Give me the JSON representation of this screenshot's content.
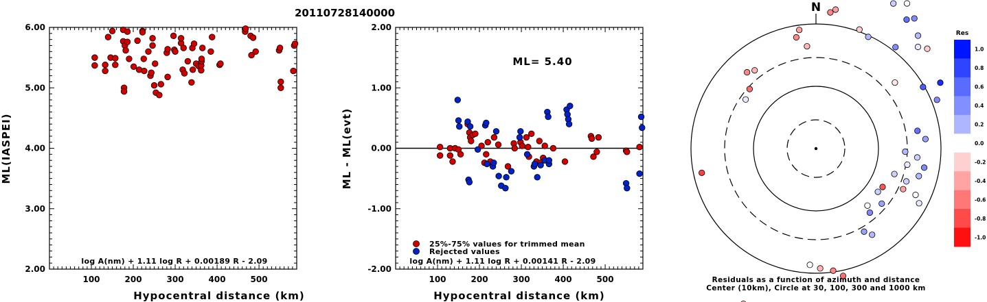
{
  "page_title": "20110728140000",
  "chart_data": [
    {
      "type": "scatter",
      "xlabel": "Hypocentral distance (km)",
      "ylabel": "ML(IASPEI)",
      "xlim": [
        0,
        590
      ],
      "ylim": [
        2.0,
        6.0
      ],
      "x_ticks": [
        "100",
        "200",
        "300",
        "400",
        "500"
      ],
      "y_ticks": [
        "2.00",
        "3.00",
        "4.00",
        "5.00",
        "6.00"
      ],
      "formula": "log A(nm) + 1.11 log R + 0.00189 R - 2.09",
      "color": "#d40000",
      "points": [
        [
          108,
          5.5
        ],
        [
          108,
          5.37
        ],
        [
          133,
          5.28
        ],
        [
          133,
          5.38
        ],
        [
          140,
          5.84
        ],
        [
          146,
          5.5
        ],
        [
          150,
          5.94
        ],
        [
          157,
          5.49
        ],
        [
          157,
          5.38
        ],
        [
          176,
          5.96
        ],
        [
          176,
          5.77
        ],
        [
          178,
          5.0
        ],
        [
          178,
          4.94
        ],
        [
          180,
          5.7
        ],
        [
          182,
          5.62
        ],
        [
          186,
          5.93
        ],
        [
          186,
          5.76
        ],
        [
          190,
          5.48
        ],
        [
          201,
          5.35
        ],
        [
          210,
          5.78
        ],
        [
          214,
          5.3
        ],
        [
          222,
          5.94
        ],
        [
          222,
          5.92
        ],
        [
          225,
          5.48
        ],
        [
          226,
          5.28
        ],
        [
          236,
          5.6
        ],
        [
          241,
          5.2
        ],
        [
          243,
          5.25
        ],
        [
          246,
          5.7
        ],
        [
          246,
          5.82
        ],
        [
          250,
          5.04
        ],
        [
          252,
          5.4
        ],
        [
          254,
          4.92
        ],
        [
          262,
          4.88
        ],
        [
          266,
          5.06
        ],
        [
          280,
          5.58
        ],
        [
          282,
          5.64
        ],
        [
          282,
          5.18
        ],
        [
          296,
          5.86
        ],
        [
          298,
          5.63
        ],
        [
          300,
          5.6
        ],
        [
          314,
          5.74
        ],
        [
          314,
          5.82
        ],
        [
          318,
          5.3
        ],
        [
          320,
          5.66
        ],
        [
          322,
          5.24
        ],
        [
          330,
          5.44
        ],
        [
          339,
          5.09
        ],
        [
          341,
          5.66
        ],
        [
          342,
          5.3
        ],
        [
          345,
          5.73
        ],
        [
          350,
          5.4
        ],
        [
          356,
          5.36
        ],
        [
          362,
          5.29
        ],
        [
          362,
          5.37
        ],
        [
          363,
          5.44
        ],
        [
          363,
          5.48
        ],
        [
          365,
          5.66
        ],
        [
          385,
          5.6
        ],
        [
          388,
          5.84
        ],
        [
          406,
          5.38
        ],
        [
          408,
          5.4
        ],
        [
          467,
          5.93
        ],
        [
          468,
          5.98
        ],
        [
          480,
          5.86
        ],
        [
          482,
          5.54
        ],
        [
          486,
          5.83
        ],
        [
          492,
          5.6
        ],
        [
          548,
          5.62
        ],
        [
          550,
          5.66
        ],
        [
          552,
          5.1
        ],
        [
          552,
          5.0
        ],
        [
          582,
          5.28
        ],
        [
          584,
          5.7
        ],
        [
          586,
          5.73
        ]
      ]
    },
    {
      "type": "scatter",
      "xlabel": "Hypocentral distance (km)",
      "ylabel": "ML - ML(evt)",
      "xlim": [
        0,
        590
      ],
      "ylim": [
        -2.0,
        2.0
      ],
      "x_ticks": [
        "100",
        "200",
        "300",
        "400",
        "500"
      ],
      "y_ticks": [
        "-2.00",
        "-1.00",
        "0.00",
        "1.00",
        "2.00"
      ],
      "annotation": "ML= 5.40",
      "formula": "log A(nm) + 1.11 log R + 0.00141 R - 2.09",
      "series": [
        {
          "name": "25%-75% values for trimmed mean",
          "color": "#d40000",
          "points": [
            [
              106,
              0.02
            ],
            [
              106,
              -0.12
            ],
            [
              130,
              0.0
            ],
            [
              130,
              -0.12
            ],
            [
              136,
              -0.22
            ],
            [
              142,
              0.0
            ],
            [
              150,
              -0.02
            ],
            [
              155,
              -0.1
            ],
            [
              172,
              0.4
            ],
            [
              176,
              0.26
            ],
            [
              178,
              0.18
            ],
            [
              180,
              0.12
            ],
            [
              184,
              0.22
            ],
            [
              190,
              0.24
            ],
            [
              205,
              0.04
            ],
            [
              212,
              -0.24
            ],
            [
              216,
              -0.1
            ],
            [
              220,
              0.1
            ],
            [
              226,
              -0.22
            ],
            [
              235,
              0.18
            ],
            [
              245,
              0.06
            ],
            [
              268,
              -0.3
            ],
            [
              282,
              0.08
            ],
            [
              284,
              0.0
            ],
            [
              298,
              0.1
            ],
            [
              302,
              0.04
            ],
            [
              312,
              0.18
            ],
            [
              316,
              0.02
            ],
            [
              318,
              -0.14
            ],
            [
              324,
              0.24
            ],
            [
              336,
              -0.22
            ],
            [
              343,
              0.12
            ],
            [
              346,
              -0.24
            ],
            [
              352,
              -0.16
            ],
            [
              356,
              0.04
            ],
            [
              376,
              0.0
            ],
            [
              404,
              -0.22
            ],
            [
              466,
              0.2
            ],
            [
              468,
              0.16
            ],
            [
              472,
              -0.14
            ],
            [
              480,
              -0.06
            ],
            [
              484,
              0.18
            ],
            [
              550,
              -0.04
            ],
            [
              552,
              -0.06
            ],
            [
              582,
              0.02
            ]
          ]
        },
        {
          "name": "Rejected values",
          "color": "#0022cc",
          "points": [
            [
              148,
              0.8
            ],
            [
              150,
              0.46
            ],
            [
              152,
              0.36
            ],
            [
              172,
              0.44
            ],
            [
              174,
              -0.52
            ],
            [
              176,
              -0.56
            ],
            [
              178,
              0.36
            ],
            [
              196,
              -0.02
            ],
            [
              214,
              0.38
            ],
            [
              216,
              0.42
            ],
            [
              218,
              -0.26
            ],
            [
              232,
              -0.3
            ],
            [
              234,
              -0.24
            ],
            [
              240,
              0.28
            ],
            [
              246,
              -0.46
            ],
            [
              252,
              -0.62
            ],
            [
              262,
              -0.66
            ],
            [
              264,
              -0.48
            ],
            [
              276,
              -0.38
            ],
            [
              296,
              0.18
            ],
            [
              298,
              0.28
            ],
            [
              314,
              -0.1
            ],
            [
              330,
              -0.3
            ],
            [
              332,
              -0.26
            ],
            [
              338,
              -0.48
            ],
            [
              346,
              -0.28
            ],
            [
              356,
              -0.2
            ],
            [
              362,
              0.6
            ],
            [
              364,
              0.52
            ],
            [
              366,
              -0.26
            ],
            [
              366,
              -0.2
            ],
            [
              408,
              0.64
            ],
            [
              410,
              0.56
            ],
            [
              412,
              0.48
            ],
            [
              414,
              0.4
            ],
            [
              416,
              0.7
            ],
            [
              550,
              -0.58
            ],
            [
              552,
              -0.66
            ],
            [
              582,
              -0.42
            ],
            [
              586,
              0.52
            ],
            [
              588,
              0.34
            ]
          ]
        }
      ]
    },
    {
      "type": "scatter",
      "title": "N",
      "caption_line1": "Residuals as a function of azimuth and distance",
      "caption_line2": "Center (10km), Circle at 30, 100, 300 and 1000 km",
      "colorbar_title": "Res",
      "colorbar_ticks": [
        "1.0",
        "0.8",
        "0.6",
        "0.4",
        "0.2",
        "0.0",
        "-0.2",
        "-0.4",
        "-0.6",
        "-0.8",
        "-1.0"
      ],
      "colorbar_colors": [
        "#0015ff",
        "#2f44ff",
        "#5a6bff",
        "#8290ff",
        "#aeb6ff",
        "#ffffff",
        "#ffd0d0",
        "#ffa3a3",
        "#ff7777",
        "#ff4a4a",
        "#ff1010"
      ],
      "points_az_dist_res": [
        [
          10,
          260,
          -0.5
        ],
        [
          12,
          255,
          -0.4
        ],
        [
          28,
          240,
          0.2
        ],
        [
          32,
          250,
          0.0
        ],
        [
          35,
          230,
          0.6
        ],
        [
          37,
          238,
          0.5
        ],
        [
          45,
          210,
          0.1
        ],
        [
          48,
          218,
          -0.2
        ],
        [
          42,
          222,
          0.3
        ],
        [
          60,
          180,
          0.7
        ],
        [
          62,
          205,
          0.9
        ],
        [
          68,
          190,
          0.5
        ],
        [
          80,
          150,
          0.6
        ],
        [
          85,
          160,
          0.4
        ],
        [
          92,
          130,
          0.3
        ],
        [
          95,
          148,
          0.2
        ],
        [
          100,
          135,
          0.1
        ],
        [
          105,
          155,
          0.3
        ],
        [
          110,
          140,
          0.2
        ],
        [
          115,
          160,
          0.0
        ],
        [
          118,
          170,
          0.1
        ],
        [
          125,
          110,
          0.2
        ],
        [
          130,
          125,
          0.4
        ],
        [
          138,
          112,
          0.0
        ],
        [
          140,
          122,
          0.5
        ],
        [
          147,
          150,
          0.3
        ],
        [
          150,
          140,
          0.4
        ],
        [
          168,
          190,
          -0.6
        ],
        [
          172,
          180,
          -0.5
        ],
        [
          178,
          175,
          -0.3
        ],
        [
          183,
          170,
          0.0
        ],
        [
          196,
          240,
          -0.7
        ],
        [
          200,
          245,
          -0.8
        ],
        [
          205,
          250,
          -0.3
        ],
        [
          258,
          170,
          -0.8
        ],
        [
          318,
          150,
          -0.5
        ],
        [
          322,
          145,
          -0.3
        ],
        [
          312,
          130,
          -0.6
        ],
        [
          305,
          125,
          0.1
        ],
        [
          350,
          165,
          -0.5
        ],
        [
          352,
          175,
          -0.4
        ],
        [
          355,
          150,
          -0.3
        ],
        [
          6,
          200,
          -0.5
        ],
        [
          8,
          205,
          -0.4
        ],
        [
          20,
          185,
          -0.2
        ],
        [
          25,
          180,
          0.3
        ],
        [
          38,
          188,
          0.5
        ],
        [
          50,
          150,
          -0.1
        ],
        [
          115,
          140,
          -0.4
        ],
        [
          120,
          112,
          -0.7
        ],
        [
          100,
          160,
          0.5
        ],
        [
          108,
          120,
          0.2
        ]
      ]
    }
  ]
}
